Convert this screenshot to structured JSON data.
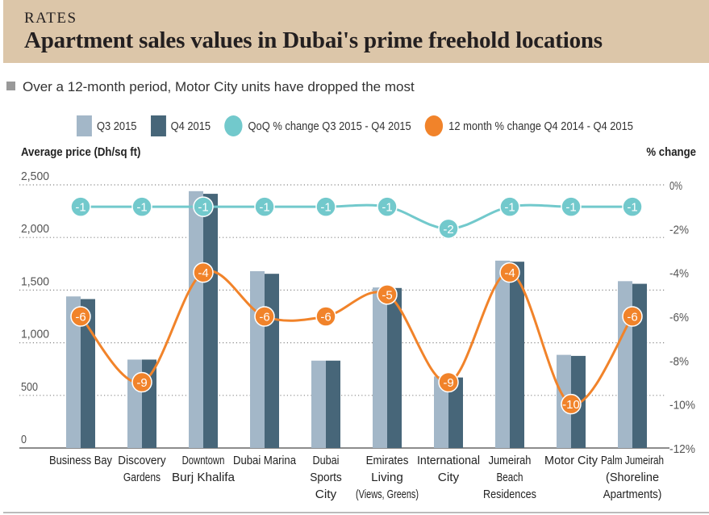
{
  "header": {
    "kicker": "RATES",
    "title": "Apartment sales values in Dubai's prime freehold locations"
  },
  "subtitle": "Over a 12-month period, Motor City units have dropped the most",
  "colors": {
    "header_bg": "#dcc6a9",
    "q3": "#a3b7c8",
    "q4": "#476679",
    "qoq": "#72c9cc",
    "yoy": "#f1832a"
  },
  "chart_data": {
    "type": "bar",
    "title": "Apartment sales values in Dubai's prime freehold locations",
    "subtitle": "Over a 12-month period, Motor City units have dropped the most",
    "xlabel": "",
    "ylabel": "Average price (Dh/sq ft)",
    "y2label": "% change",
    "ylim": [
      0,
      2500
    ],
    "yticks": [
      0,
      500,
      1000,
      1500,
      2000,
      2500
    ],
    "ytick_labels": [
      "0",
      "500",
      "1,000",
      "1,500",
      "2,000",
      "2,500"
    ],
    "y2lim": [
      -12,
      0
    ],
    "y2ticks": [
      0,
      -2,
      -4,
      -6,
      -8,
      -10,
      -12
    ],
    "y2tick_labels": [
      "0%",
      "-2%",
      "-4%",
      "-6%",
      "-8%",
      "-10%",
      "-12%"
    ],
    "grid": true,
    "legend_position": "top",
    "categories": [
      [
        "Business Bay"
      ],
      [
        "Discovery",
        "Gardens"
      ],
      [
        "Downtown",
        "Burj Khalifa"
      ],
      [
        "Dubai Marina"
      ],
      [
        "Dubai",
        "Sports",
        "City"
      ],
      [
        "Emirates",
        "Living",
        "(Views, Greens)"
      ],
      [
        "International",
        "City"
      ],
      [
        "Jumeirah",
        "Beach",
        "Residences"
      ],
      [
        "Motor City"
      ],
      [
        "Palm Jumeirah",
        "(Shoreline",
        "Apartments)"
      ]
    ],
    "series": [
      {
        "name": "Q3 2015",
        "type": "bar",
        "axis": "left",
        "values": [
          1440,
          840,
          2440,
          1680,
          830,
          1525,
          680,
          1780,
          885,
          1585
        ]
      },
      {
        "name": "Q4 2015",
        "type": "bar",
        "axis": "left",
        "values": [
          1415,
          840,
          2415,
          1655,
          830,
          1520,
          670,
          1770,
          875,
          1560
        ]
      },
      {
        "name": "QoQ % change Q3 2015 - Q4 2015",
        "type": "line",
        "axis": "right",
        "values": [
          -1,
          -1,
          -1,
          -1,
          -1,
          -1,
          -2,
          -1,
          -1,
          -1
        ]
      },
      {
        "name": "12 month % change Q4 2014 - Q4 2015",
        "type": "line",
        "axis": "right",
        "values": [
          -6,
          -9,
          -4,
          -6,
          -6,
          -5,
          -9,
          -4,
          -10,
          -6
        ]
      }
    ]
  }
}
